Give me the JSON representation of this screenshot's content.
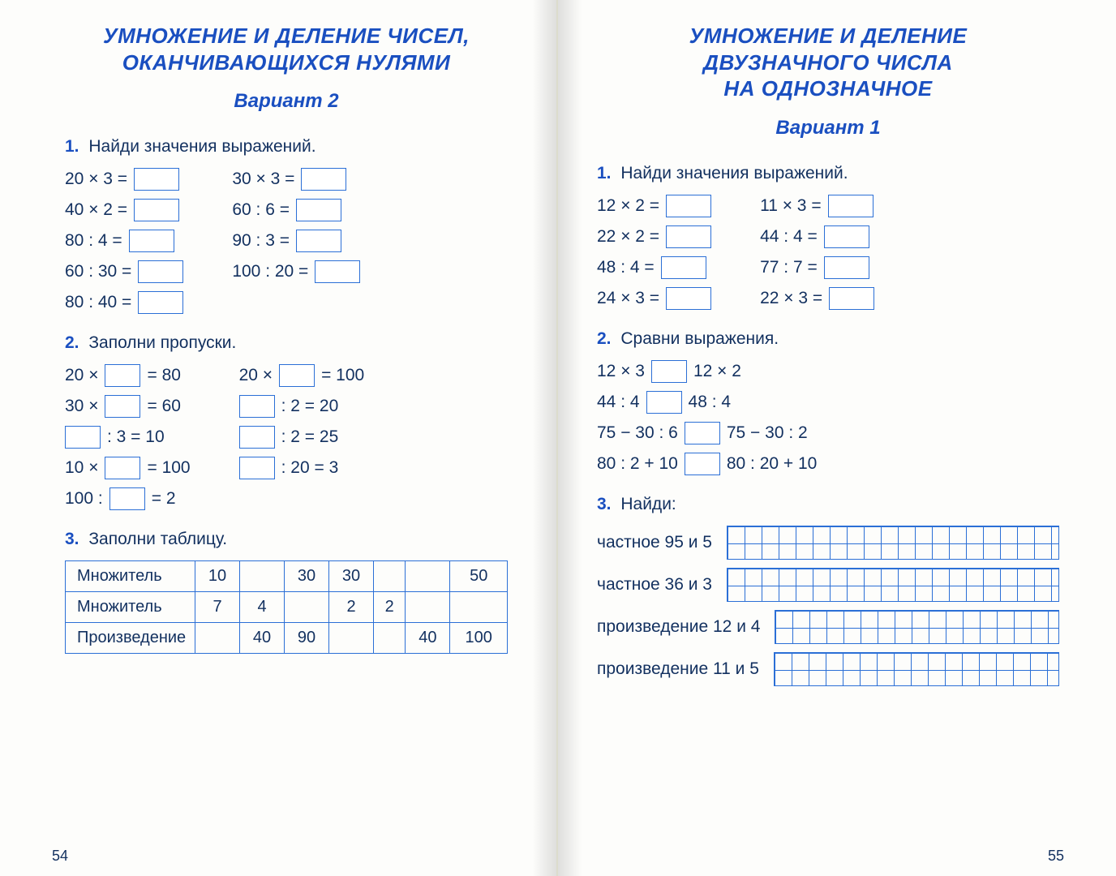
{
  "colors": {
    "brand": "#1a4fc0",
    "ink": "#12305f",
    "rule": "#2b6fd6",
    "paper": "#fdfdfb"
  },
  "typography": {
    "heading_size": 26,
    "body_size": 21,
    "font_family": "Arial"
  },
  "left": {
    "title_l1": "УМНОЖЕНИЕ И ДЕЛЕНИЕ ЧИСЕЛ,",
    "title_l2": "ОКАНЧИВАЮЩИХСЯ НУЛЯМИ",
    "variant": "Вариант 2",
    "t1": {
      "num": "1.",
      "title": "Найди значения выражений.",
      "colA": [
        "20 × 3 =",
        "40 × 2 =",
        "80 : 4 =",
        "60 : 30 =",
        "80 : 40 ="
      ],
      "colB": [
        "30 × 3 =",
        "60 : 6 =",
        "90 : 3 =",
        "100 : 20 ="
      ]
    },
    "t2": {
      "num": "2.",
      "title": "Заполни пропуски.",
      "colA": [
        "20 × __ = 80",
        "30 × __ = 60",
        "__ : 3 = 10",
        "10 × __ = 100",
        "100 : __ = 2"
      ],
      "colB": [
        "20 × __ = 100",
        "__ : 2 = 20",
        "__ : 2 = 25",
        "__ : 20 = 3"
      ]
    },
    "t3": {
      "num": "3.",
      "title": "Заполни таблицу.",
      "rows": {
        "r1": "Множитель",
        "r2": "Множитель",
        "r3": "Произведение"
      },
      "data": [
        [
          "10",
          "",
          "30",
          "30",
          "",
          "",
          "50"
        ],
        [
          "7",
          "4",
          "",
          "2",
          "2",
          "",
          ""
        ],
        [
          "",
          "40",
          "90",
          "",
          "",
          "40",
          "100"
        ]
      ]
    },
    "pagenum": "54"
  },
  "right": {
    "title_l1": "УМНОЖЕНИЕ И ДЕЛЕНИЕ",
    "title_l2": "ДВУЗНАЧНОГО ЧИСЛА",
    "title_l3": "НА ОДНОЗНАЧНОЕ",
    "variant": "Вариант 1",
    "t1": {
      "num": "1.",
      "title": "Найди значения выражений.",
      "colA": [
        "12 × 2 =",
        "22 × 2 =",
        "48 : 4 =",
        "24 × 3 ="
      ],
      "colB": [
        "11 × 3 =",
        "44 : 4 =",
        "77 : 7 =",
        "22 × 3 ="
      ]
    },
    "t2": {
      "num": "2.",
      "title": "Сравни выражения.",
      "rows": [
        {
          "a": "12 × 3",
          "b": "12 × 2"
        },
        {
          "a": "44 : 4",
          "b": "48 : 4"
        },
        {
          "a": "75 − 30 : 6",
          "b": "75 − 30 : 2"
        },
        {
          "a": "80 : 2 + 10",
          "b": "80 : 20 + 10"
        }
      ]
    },
    "t3": {
      "num": "3.",
      "title": "Найди:",
      "items": [
        "частное 95 и 5",
        "частное 36 и 3",
        "произведение 12 и 4",
        "произведение 11 и 5"
      ]
    },
    "pagenum": "55"
  }
}
